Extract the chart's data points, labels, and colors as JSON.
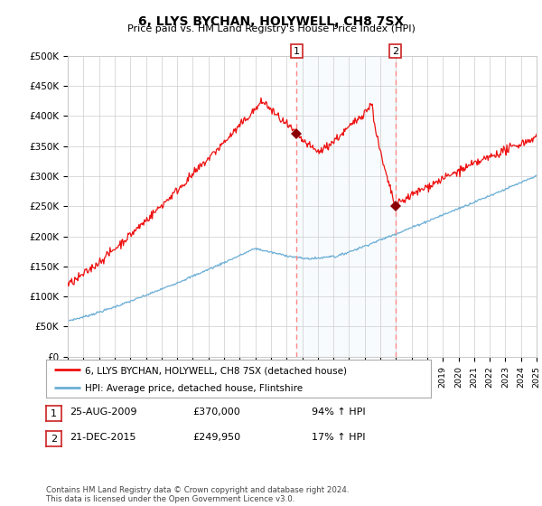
{
  "title": "6, LLYS BYCHAN, HOLYWELL, CH8 7SX",
  "subtitle": "Price paid vs. HM Land Registry's House Price Index (HPI)",
  "ylim": [
    0,
    500000
  ],
  "yticks": [
    0,
    50000,
    100000,
    150000,
    200000,
    250000,
    300000,
    350000,
    400000,
    450000,
    500000
  ],
  "ytick_labels": [
    "£0",
    "£50K",
    "£100K",
    "£150K",
    "£200K",
    "£250K",
    "£300K",
    "£350K",
    "£400K",
    "£450K",
    "£500K"
  ],
  "sale1_date": 2009.65,
  "sale1_price": 370000,
  "sale1_label": "1",
  "sale2_date": 2015.97,
  "sale2_price": 249950,
  "sale2_label": "2",
  "hpi_line_color": "#6BAED6",
  "price_line_color": "#EE1111",
  "marker_color_sale": "#8B0000",
  "vline_color": "#FF8888",
  "background_color": "#FFFFFF",
  "grid_color": "#CCCCCC",
  "legend_label_price": "6, LLYS BYCHAN, HOLYWELL, CH8 7SX (detached house)",
  "legend_label_hpi": "HPI: Average price, detached house, Flintshire",
  "table_rows": [
    {
      "num": "1",
      "date": "25-AUG-2009",
      "price": "£370,000",
      "pct": "94% ↑ HPI"
    },
    {
      "num": "2",
      "date": "21-DEC-2015",
      "price": "£249,950",
      "pct": "17% ↑ HPI"
    }
  ],
  "footnote": "Contains HM Land Registry data © Crown copyright and database right 2024.\nThis data is licensed under the Open Government Licence v3.0.",
  "xmin": 1995,
  "xmax": 2025
}
